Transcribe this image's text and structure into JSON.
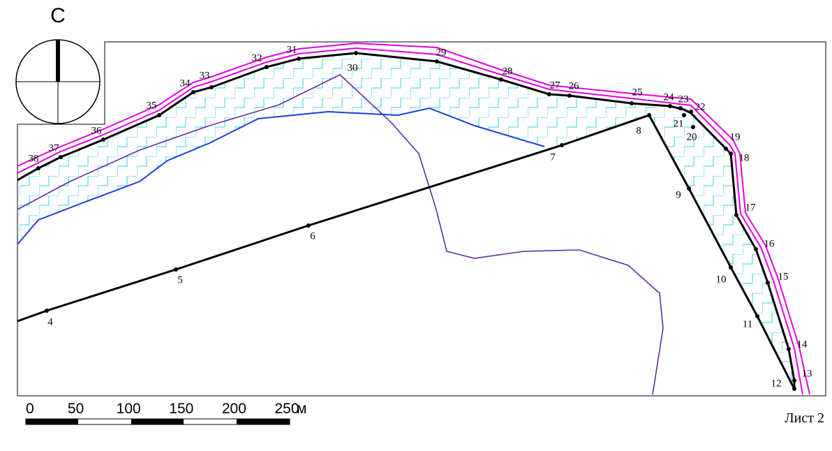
{
  "north_label": "С",
  "point_labels": [
    "4",
    "5",
    "6",
    "7",
    "8",
    "9",
    "10",
    "11",
    "12",
    "13",
    "14",
    "15",
    "16",
    "17",
    "18",
    "19",
    "20",
    "21",
    "22",
    "23",
    "24",
    "25",
    "26",
    "27",
    "28",
    "29",
    "30",
    "31",
    "32",
    "33",
    "34",
    "35",
    "36",
    "37",
    "38"
  ],
  "scale_bar": {
    "labels": [
      "0",
      "50",
      "100",
      "150",
      "200",
      "250"
    ],
    "unit": "м"
  },
  "sheet_label": "Лист 2"
}
